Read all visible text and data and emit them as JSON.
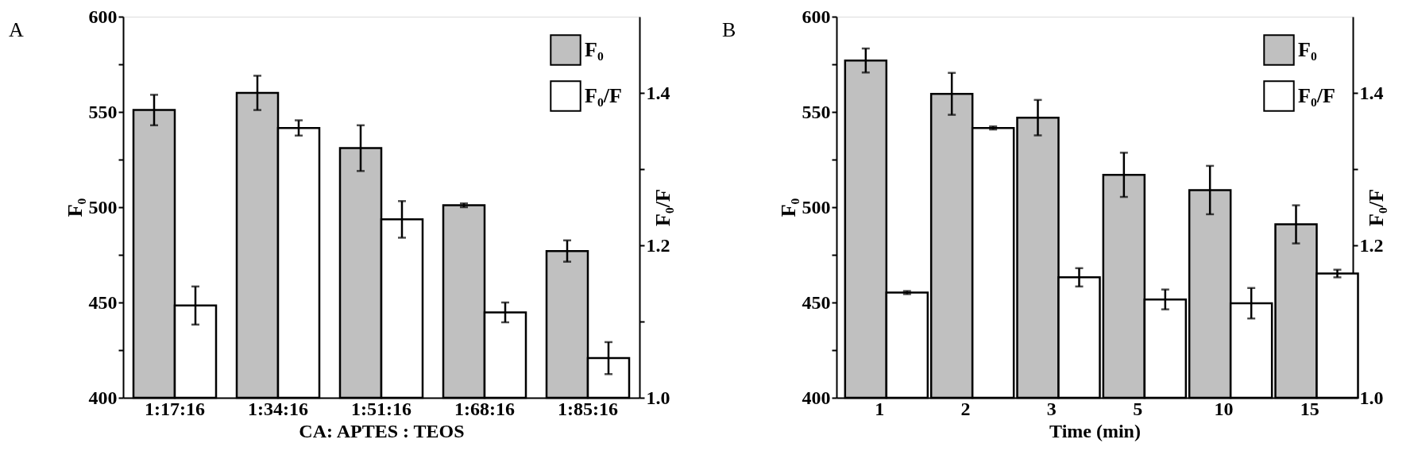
{
  "chart_data": [
    {
      "type": "bar",
      "annotations": [
        "A"
      ],
      "xlabel": "CA: APTES : TEOS",
      "ylabel": "F₀",
      "y2label": "F₀/F",
      "categories": [
        "1:17:16",
        "1:34:16",
        "1:51:16",
        "1:68:16",
        "1:85:16"
      ],
      "series": [
        {
          "name": "F₀",
          "color": "#c0c0c0",
          "values": [
            551,
            560,
            531,
            501,
            477
          ],
          "errors": [
            8,
            9,
            12,
            1,
            5.6
          ]
        },
        {
          "name": "F₀/F",
          "color": "#ffffff",
          "axis": "y2",
          "values": [
            1.121,
            1.354,
            1.234,
            1.112,
            1.052
          ],
          "errors": [
            0.025,
            0.01,
            0.024,
            0.013,
            0.021
          ]
        }
      ],
      "ylim": [
        400,
        600
      ],
      "yticks": [
        400,
        {
          "value": 425,
          "label": null
        },
        450,
        {
          "value": 475,
          "label": null
        },
        500,
        {
          "value": 525,
          "label": null
        },
        550,
        {
          "value": 575,
          "label": null
        },
        600
      ],
      "y2lim": [
        1.0,
        1.5
      ],
      "y2ticks": [
        {
          "value": 1.0,
          "label": "1.0"
        },
        {
          "value": 1.1,
          "label": null
        },
        {
          "value": 1.2,
          "label": "1.2"
        },
        {
          "value": 1.3,
          "label": null
        },
        {
          "value": 1.4,
          "label": "1.4"
        }
      ],
      "legend": "top right",
      "grid": false
    },
    {
      "type": "bar",
      "annotations": [
        "B"
      ],
      "xlabel": "Time (min)",
      "ylabel": "F₀",
      "y2label": "F₀/F",
      "categories": [
        "1",
        "2",
        "3",
        "5",
        "10",
        "15"
      ],
      "series": [
        {
          "name": "F₀",
          "color": "#c0c0c0",
          "values": [
            577,
            559.5,
            547,
            517,
            509,
            491
          ],
          "errors": [
            6.3,
            11,
            9.3,
            11.6,
            12.7,
            10
          ]
        },
        {
          "name": "F₀/F",
          "color": "#ffffff",
          "axis": "y2",
          "values": [
            1.138,
            1.354,
            1.158,
            1.129,
            1.124,
            1.163
          ],
          "errors": [
            0.002,
            0.002,
            0.012,
            0.013,
            0.02,
            0.005
          ]
        }
      ],
      "ylim": [
        400,
        600
      ],
      "yticks": [
        400,
        {
          "value": 425,
          "label": null
        },
        450,
        {
          "value": 475,
          "label": null
        },
        500,
        {
          "value": 525,
          "label": null
        },
        550,
        {
          "value": 575,
          "label": null
        },
        600
      ],
      "y2lim": [
        1.0,
        1.5
      ],
      "y2ticks": [
        {
          "value": 1.0,
          "label": "1.0"
        },
        {
          "value": 1.1,
          "label": null
        },
        {
          "value": 1.2,
          "label": "1.2"
        },
        {
          "value": 1.3,
          "label": null
        },
        {
          "value": 1.4,
          "label": "1.4"
        }
      ],
      "legend": "top right",
      "grid": false
    }
  ]
}
